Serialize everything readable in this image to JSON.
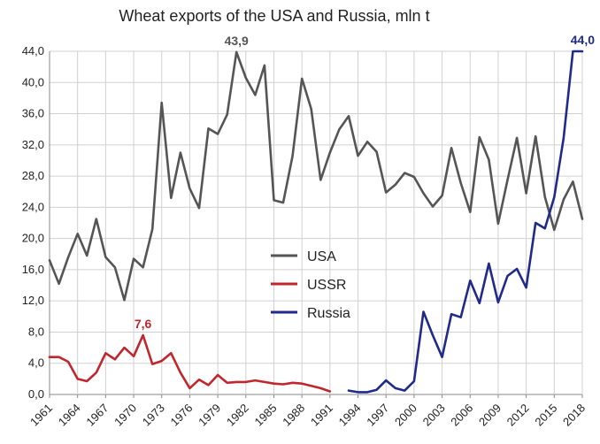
{
  "chart_data": {
    "type": "line",
    "title": "Wheat exports of the USA and Russia, mln t",
    "xlim": [
      1961,
      2018
    ],
    "ylim": [
      0,
      44
    ],
    "y_ticks": [
      "0,0",
      "4,0",
      "8,0",
      "12,0",
      "16,0",
      "20,0",
      "24,0",
      "28,0",
      "32,0",
      "36,0",
      "40,0",
      "44,0"
    ],
    "x_tick_labels": [
      "1961",
      "1964",
      "1967",
      "1970",
      "1973",
      "1976",
      "1979",
      "1982",
      "1985",
      "1988",
      "1991",
      "1994",
      "1997",
      "2000",
      "2003",
      "2006",
      "2009",
      "2012",
      "2015",
      "2018"
    ],
    "grid": true,
    "legend_position": "center",
    "series": [
      {
        "name": "USA",
        "color": "#555555",
        "x": [
          1961,
          1962,
          1963,
          1964,
          1965,
          1966,
          1967,
          1968,
          1969,
          1970,
          1971,
          1972,
          1973,
          1974,
          1975,
          1976,
          1977,
          1978,
          1979,
          1980,
          1981,
          1982,
          1983,
          1984,
          1985,
          1986,
          1987,
          1988,
          1989,
          1990,
          1991,
          1992,
          1993,
          1994,
          1995,
          1996,
          1997,
          1998,
          1999,
          2000,
          2001,
          2002,
          2003,
          2004,
          2005,
          2006,
          2007,
          2008,
          2009,
          2010,
          2011,
          2012,
          2013,
          2014,
          2015,
          2016,
          2017,
          2018
        ],
        "values": [
          17.2,
          14.2,
          17.6,
          20.6,
          17.8,
          22.5,
          17.6,
          16.3,
          12.1,
          17.4,
          16.3,
          21.2,
          37.4,
          25.2,
          31.0,
          26.4,
          23.9,
          34.1,
          33.4,
          35.9,
          43.9,
          40.6,
          38.4,
          42.2,
          24.9,
          24.6,
          30.6,
          40.5,
          36.6,
          27.5,
          31.0,
          34.0,
          35.7,
          30.6,
          32.4,
          31.1,
          25.9,
          26.9,
          28.4,
          27.9,
          25.8,
          24.1,
          25.5,
          31.6,
          27.1,
          23.4,
          33.0,
          30.1,
          21.9,
          27.5,
          32.9,
          25.8,
          33.1,
          25.3,
          21.1,
          25.0,
          27.3,
          22.5
        ]
      },
      {
        "name": "USSR",
        "color": "#c0272d",
        "x": [
          1961,
          1962,
          1963,
          1964,
          1965,
          1966,
          1967,
          1968,
          1969,
          1970,
          1971,
          1972,
          1973,
          1974,
          1975,
          1976,
          1977,
          1978,
          1979,
          1980,
          1981,
          1982,
          1983,
          1984,
          1985,
          1986,
          1987,
          1988,
          1989,
          1990,
          1991
        ],
        "values": [
          4.8,
          4.8,
          4.2,
          2.0,
          1.7,
          2.8,
          5.3,
          4.5,
          6.0,
          4.9,
          7.6,
          3.9,
          4.3,
          5.3,
          2.8,
          0.8,
          1.9,
          1.2,
          2.5,
          1.5,
          1.6,
          1.6,
          1.8,
          1.6,
          1.4,
          1.3,
          1.5,
          1.4,
          1.1,
          0.8,
          0.4
        ]
      },
      {
        "name": "Russia",
        "color": "#1f2a8a",
        "x": [
          1993,
          1994,
          1995,
          1996,
          1997,
          1998,
          1999,
          2000,
          2001,
          2002,
          2003,
          2004,
          2005,
          2006,
          2007,
          2008,
          2009,
          2010,
          2011,
          2012,
          2013,
          2014,
          2015,
          2016,
          2017,
          2018
        ],
        "values": [
          0.5,
          0.3,
          0.3,
          0.6,
          1.8,
          0.8,
          0.5,
          1.7,
          10.6,
          7.6,
          4.8,
          10.3,
          9.9,
          14.6,
          11.7,
          16.8,
          11.8,
          15.2,
          16.1,
          13.7,
          22.0,
          21.3,
          25.3,
          32.9,
          44.0,
          44.0
        ]
      }
    ],
    "annotations": [
      {
        "text": "43,9",
        "x": 1981,
        "y": 43.9,
        "color": "#555555"
      },
      {
        "text": "7,6",
        "x": 1971,
        "y": 7.6,
        "color": "#c0272d"
      },
      {
        "text": "44,0",
        "x": 2018,
        "y": 44.0,
        "color": "#1f2a8a"
      }
    ]
  }
}
